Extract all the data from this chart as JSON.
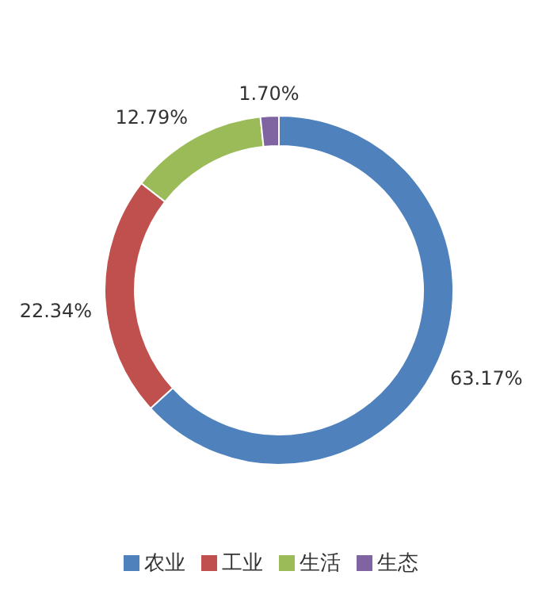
{
  "chart_data": {
    "type": "donut",
    "categories": [
      "农业",
      "工业",
      "生活",
      "生态"
    ],
    "values": [
      63.17,
      22.34,
      12.79,
      1.7
    ],
    "colors": [
      "#4f81bd",
      "#c0504d",
      "#9bbb59",
      "#8064a2"
    ],
    "value_labels": [
      "63.17%",
      "22.34%",
      "12.79%",
      "1.70%"
    ],
    "legend": "bottom"
  }
}
